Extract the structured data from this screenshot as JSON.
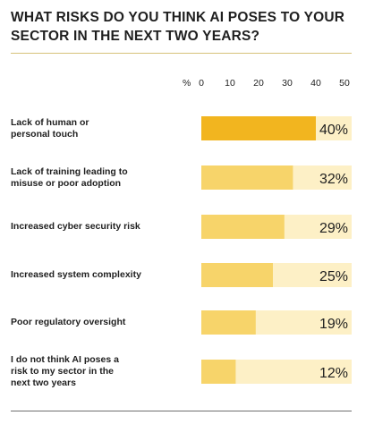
{
  "title": "WHAT RISKS DO YOU THINK AI POSES TO YOUR SECTOR IN THE NEXT TWO YEARS?",
  "colors": {
    "highlight": "#f2b51f",
    "bar": "#f7d46a",
    "track": "#fdf0c6",
    "text": "#1f1f1f"
  },
  "chart_data": {
    "type": "bar",
    "orientation": "horizontal",
    "title": "WHAT RISKS DO YOU THINK AI POSES TO YOUR SECTOR IN THE NEXT TWO YEARS?",
    "axis_unit": "%",
    "xlim": [
      0,
      50
    ],
    "ticks": [
      0,
      10,
      20,
      30,
      40,
      50
    ],
    "grid": false,
    "categories": [
      "Lack of human or personal touch",
      "Lack of training leading to misuse or poor adoption",
      "Increased cyber security risk",
      "Increased system complexity",
      "Poor regulatory oversight",
      "I do not think AI poses a risk to my sector in the next two years"
    ],
    "category_lines": [
      [
        "Lack of human or",
        "personal touch"
      ],
      [
        "Lack of training leading to",
        "misuse or poor adoption"
      ],
      [
        "Increased cyber security risk"
      ],
      [
        "Increased system complexity"
      ],
      [
        "Poor regulatory oversight"
      ],
      [
        "I do not think AI poses a",
        "risk to my sector in the",
        "next two years"
      ]
    ],
    "values": [
      40,
      32,
      29,
      25,
      19,
      12
    ],
    "value_labels": [
      "40%",
      "32%",
      "29%",
      "25%",
      "19%",
      "12%"
    ]
  }
}
